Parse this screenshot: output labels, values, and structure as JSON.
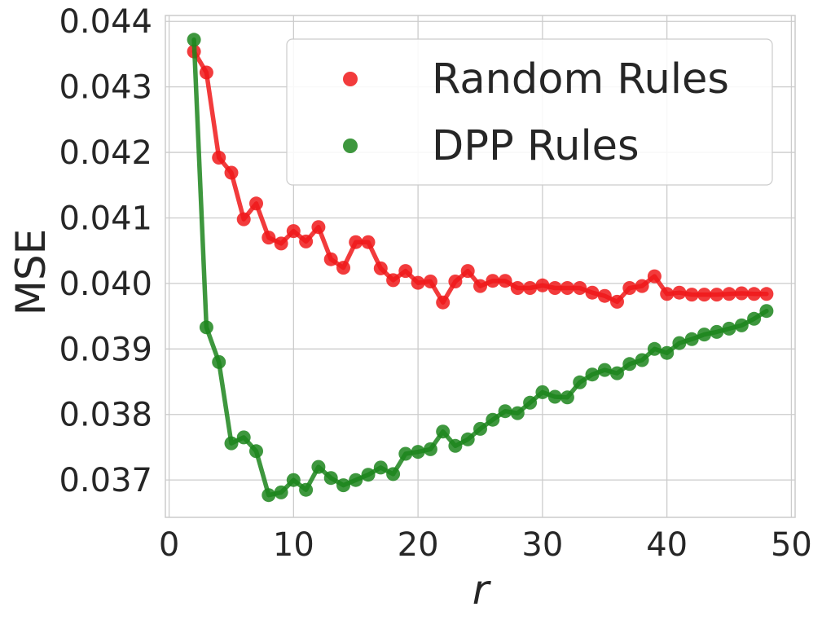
{
  "chart_data": {
    "type": "line",
    "title": "",
    "xlabel": "r",
    "ylabel": "MSE",
    "xlim": [
      -0.3,
      50.3
    ],
    "ylim": [
      0.03643,
      0.04409
    ],
    "xticks": [
      0,
      10,
      20,
      30,
      40,
      50
    ],
    "xtick_labels": [
      "0",
      "10",
      "20",
      "30",
      "40",
      "50"
    ],
    "yticks": [
      0.037,
      0.038,
      0.039,
      0.04,
      0.041,
      0.042,
      0.043,
      0.044
    ],
    "ytick_labels": [
      "0.037",
      "0.038",
      "0.039",
      "0.040",
      "0.041",
      "0.042",
      "0.043",
      "0.044"
    ],
    "grid": true,
    "legend_position": "top-right",
    "x": [
      2,
      3,
      4,
      5,
      6,
      7,
      8,
      9,
      10,
      11,
      12,
      13,
      14,
      15,
      16,
      17,
      18,
      19,
      20,
      21,
      22,
      23,
      24,
      25,
      26,
      27,
      28,
      29,
      30,
      31,
      32,
      33,
      34,
      35,
      36,
      37,
      38,
      39,
      40,
      41,
      42,
      43,
      44,
      45,
      46,
      47,
      48
    ],
    "series": [
      {
        "name": "Random Rules",
        "color": "#f0191a",
        "values": [
          0.04354,
          0.04322,
          0.04192,
          0.04169,
          0.04098,
          0.04122,
          0.0407,
          0.04061,
          0.0408,
          0.04064,
          0.04086,
          0.04037,
          0.04024,
          0.04063,
          0.04063,
          0.04023,
          0.04005,
          0.04019,
          0.04001,
          0.04003,
          0.03971,
          0.04003,
          0.04019,
          0.03996,
          0.04004,
          0.04004,
          0.03993,
          0.03993,
          0.03997,
          0.03993,
          0.03993,
          0.03993,
          0.03986,
          0.03981,
          0.03972,
          0.03993,
          0.03996,
          0.04011,
          0.03984,
          0.03986,
          0.03983,
          0.03983,
          0.03983,
          0.03984,
          0.03985,
          0.03984,
          0.03984
        ]
      },
      {
        "name": "DPP Rules",
        "color": "#1c851c",
        "values": [
          0.04372,
          0.03933,
          0.0388,
          0.03756,
          0.03765,
          0.03744,
          0.03677,
          0.03681,
          0.037,
          0.03685,
          0.0372,
          0.03703,
          0.03692,
          0.037,
          0.03708,
          0.03719,
          0.03709,
          0.0374,
          0.03743,
          0.03747,
          0.03774,
          0.03752,
          0.03762,
          0.03778,
          0.03792,
          0.03805,
          0.03802,
          0.03818,
          0.03834,
          0.03827,
          0.03826,
          0.03849,
          0.03861,
          0.03868,
          0.03863,
          0.03877,
          0.03883,
          0.039,
          0.03894,
          0.03909,
          0.03915,
          0.03922,
          0.03926,
          0.03931,
          0.03936,
          0.03946,
          0.03958
        ]
      }
    ]
  }
}
